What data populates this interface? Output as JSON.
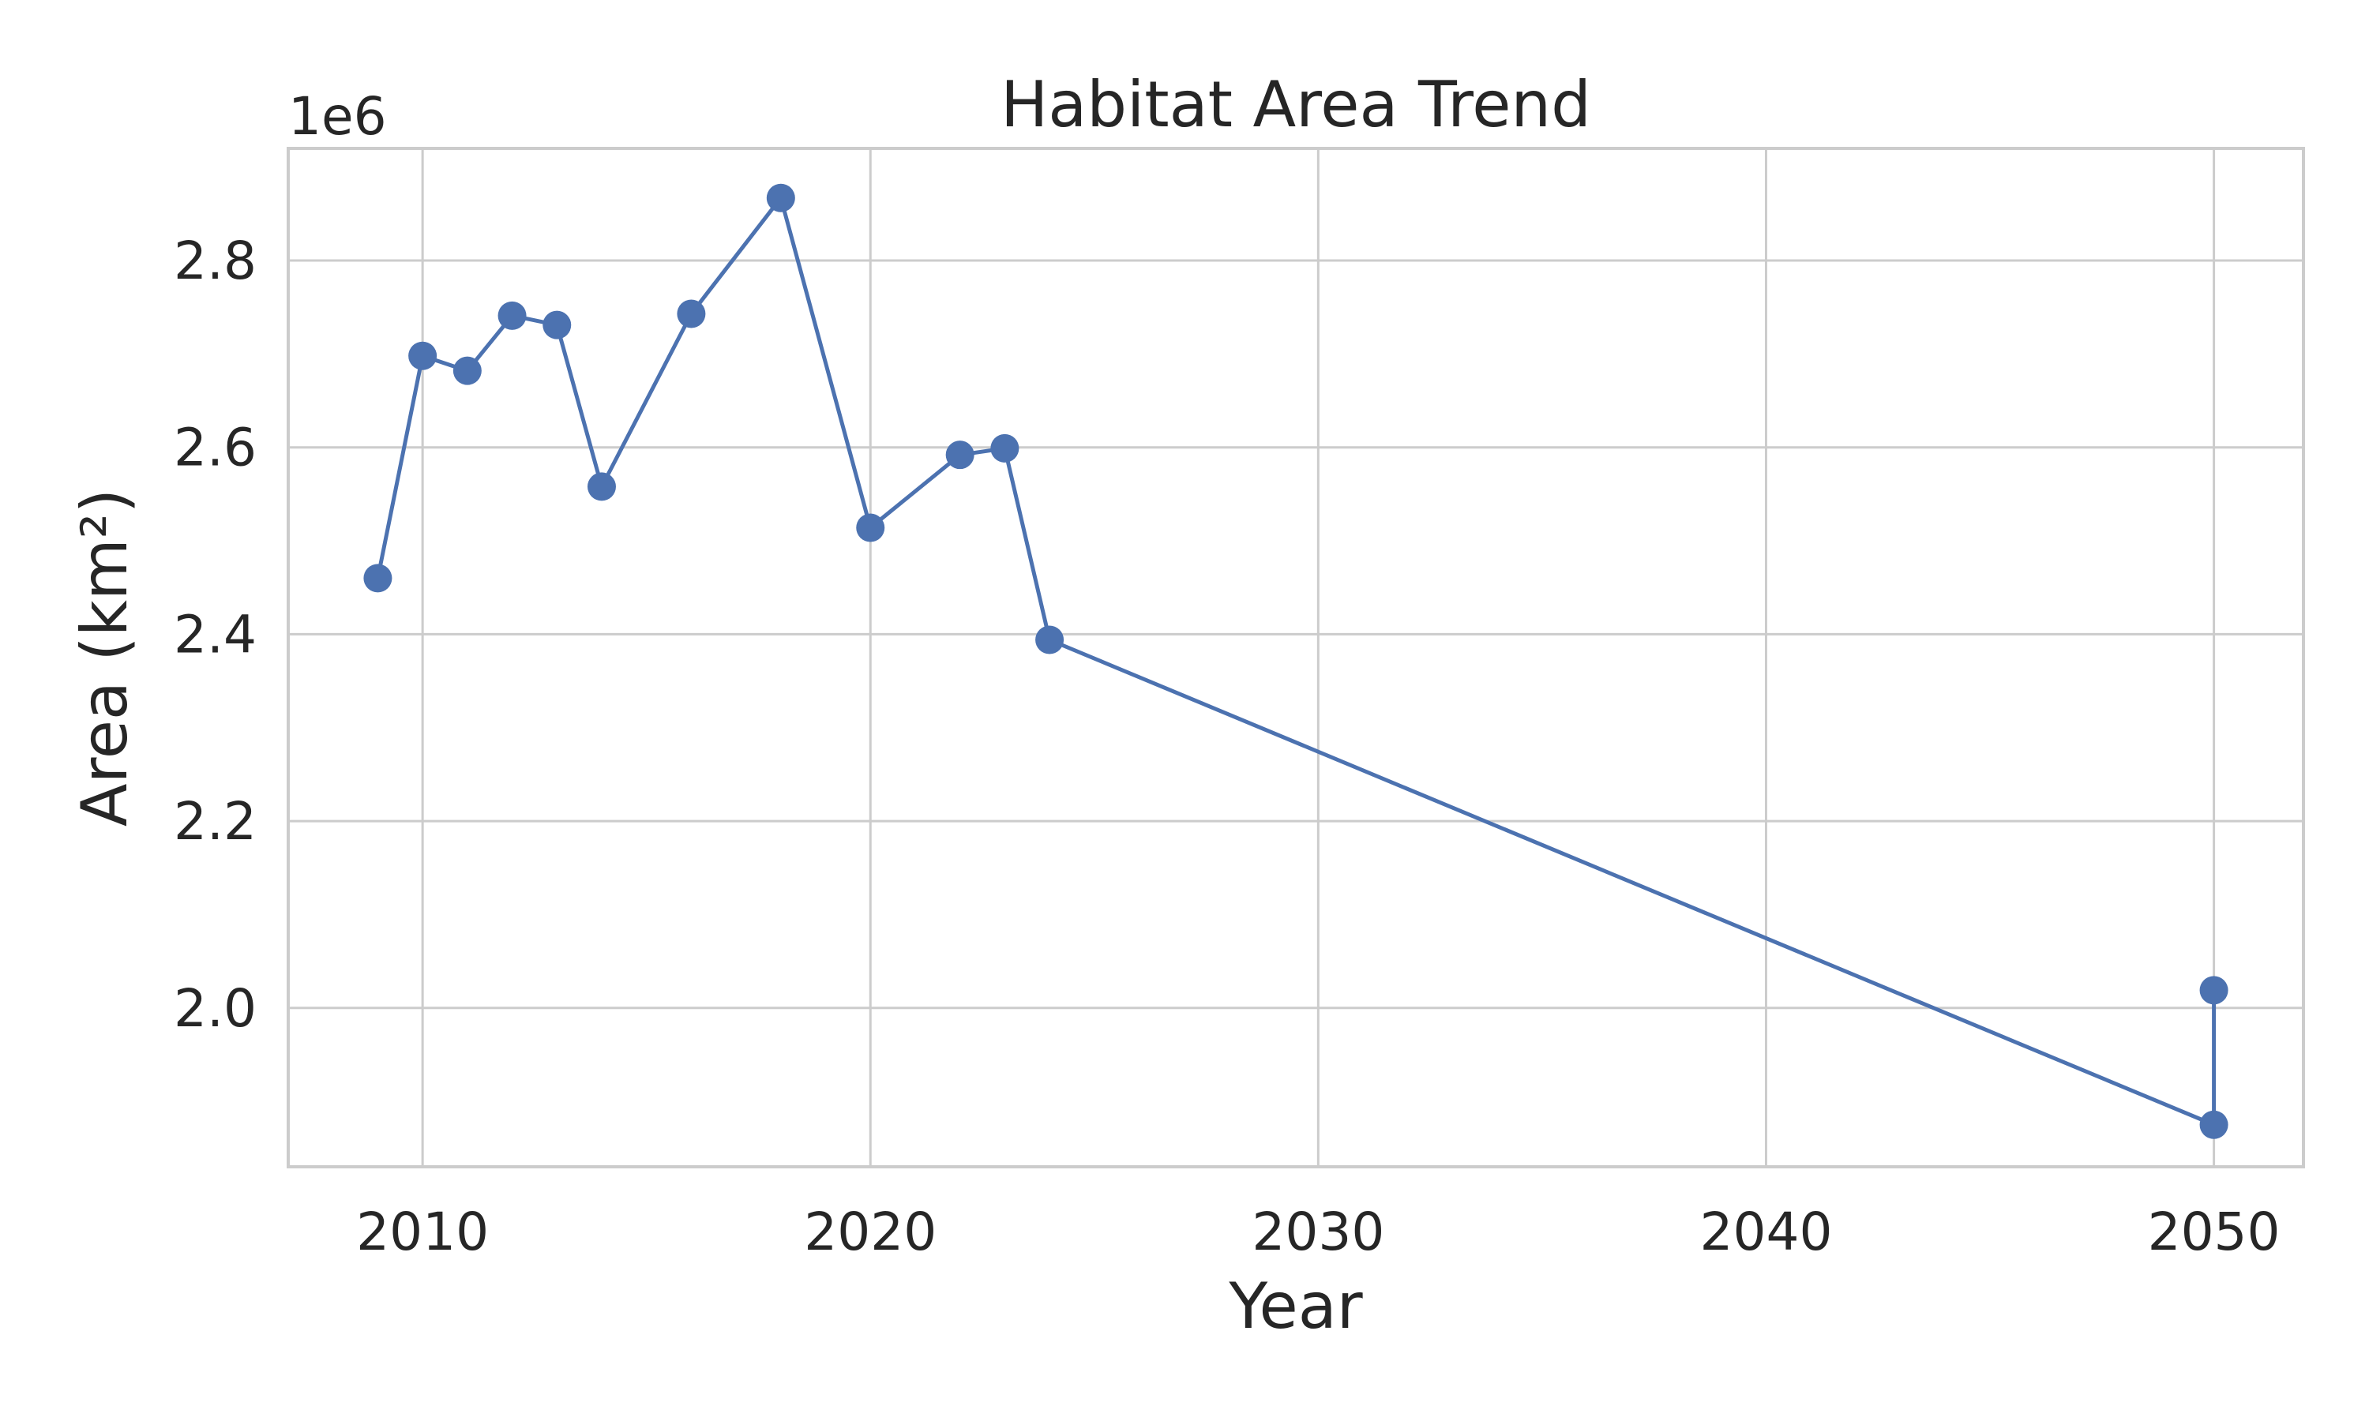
{
  "chart_data": {
    "type": "line",
    "title": "Habitat Area Trend",
    "xlabel": "Year",
    "ylabel": "Area (km²)",
    "y_offset_label": "1e6",
    "xlim": [
      2007,
      2052
    ],
    "ylim": [
      1830000,
      2920000
    ],
    "x_ticks": [
      2010,
      2020,
      2030,
      2040,
      2050
    ],
    "x_tick_labels": [
      "2010",
      "2020",
      "2030",
      "2040",
      "2050"
    ],
    "y_ticks": [
      2000000,
      2200000,
      2400000,
      2600000,
      2800000
    ],
    "y_tick_labels": [
      "2.0",
      "2.2",
      "2.4",
      "2.6",
      "2.8"
    ],
    "grid": true,
    "legend": false,
    "series": [
      {
        "color": "#4c72b0",
        "marker": "circle",
        "points": [
          {
            "x": 2009,
            "y": 2460000
          },
          {
            "x": 2010,
            "y": 2698000
          },
          {
            "x": 2011,
            "y": 2682000
          },
          {
            "x": 2012,
            "y": 2741000
          },
          {
            "x": 2013,
            "y": 2731000
          },
          {
            "x": 2014,
            "y": 2558000
          },
          {
            "x": 2016,
            "y": 2743000
          },
          {
            "x": 2018,
            "y": 2867000
          },
          {
            "x": 2020,
            "y": 2514000
          },
          {
            "x": 2022,
            "y": 2592000
          },
          {
            "x": 2023,
            "y": 2599000
          },
          {
            "x": 2024,
            "y": 2394000
          },
          {
            "x": 2050,
            "y": 1875000
          },
          {
            "x": 2050,
            "y": 2019000
          }
        ]
      }
    ]
  }
}
